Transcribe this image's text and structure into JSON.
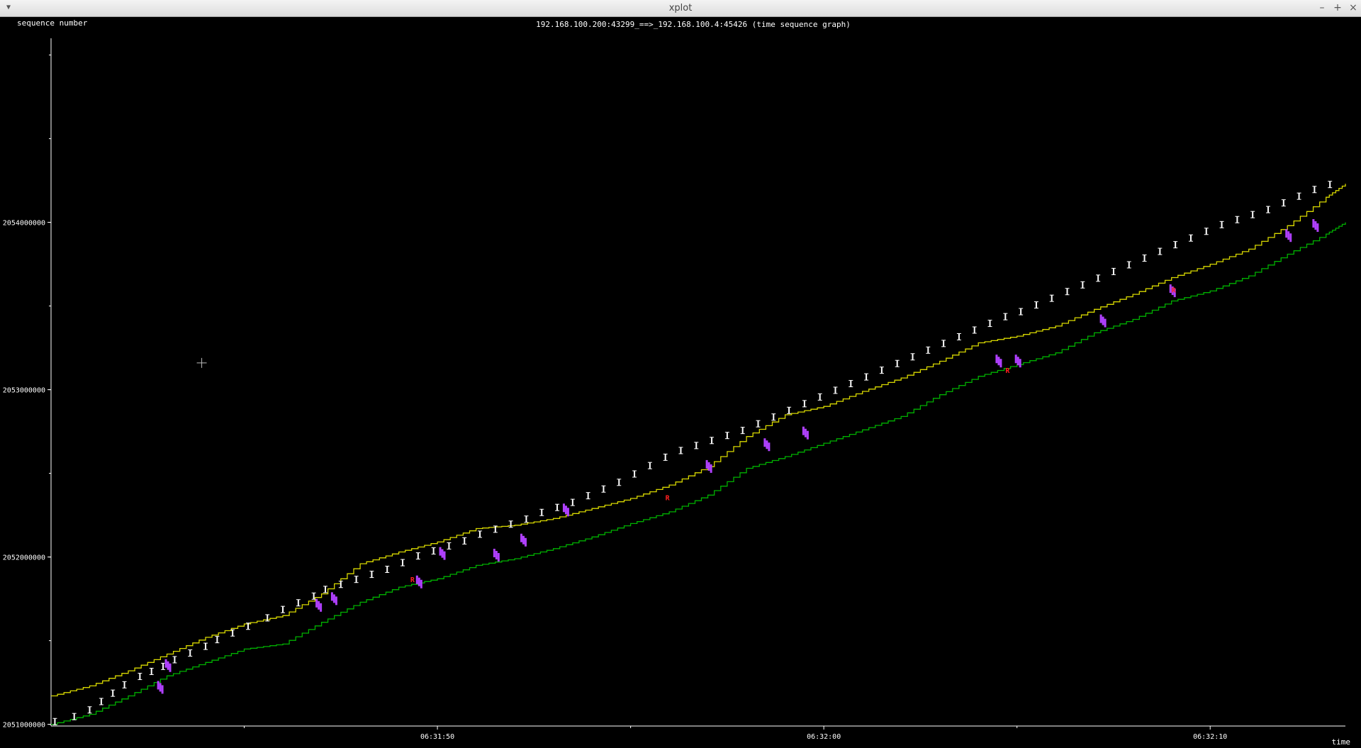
{
  "window": {
    "title": "xplot",
    "menu_icon": "chevron-down-icon",
    "controls": [
      {
        "name": "minimize-icon",
        "glyph": "–"
      },
      {
        "name": "maximize-icon",
        "glyph": "+"
      },
      {
        "name": "close-icon",
        "glyph": "×"
      }
    ]
  },
  "chart_data": {
    "type": "line",
    "title": "192.168.100.200:43299_==>_192.168.100.4:45426 (time sequence graph)",
    "ylabel": "sequence number",
    "xlabel": "time",
    "x_ticks": [
      "06:31:50",
      "06:32:00",
      "06:32:10"
    ],
    "y_ticks": [
      "2051000000",
      "2052000000",
      "2053000000",
      "2054000000"
    ],
    "y_tick_values": [
      2051000000,
      2052000000,
      2053000000,
      2054000000
    ],
    "x_tick_values": [
      50,
      60,
      70
    ],
    "xlim": [
      40.0,
      73.5
    ],
    "ylim": [
      2050990000,
      2055100000
    ],
    "grid": false,
    "colors": {
      "window": "#d8d800",
      "ack": "#00b000",
      "data": "#ffffff",
      "sack": "#b040ff",
      "retransmit": "#ff2020",
      "axis": "#ffffff",
      "text": "#ffffff"
    },
    "series": [
      {
        "color": "window",
        "x": [
          40.0,
          41.0,
          42.0,
          43.0,
          44.0,
          45.0,
          46.0,
          47.0,
          48.0,
          49.0,
          50.0,
          51.0,
          52.0,
          53.0,
          54.0,
          55.0,
          56.0,
          57.0,
          58.0,
          59.0,
          60.0,
          61.0,
          62.0,
          63.0,
          64.0,
          65.0,
          66.0,
          67.0,
          68.0,
          69.0,
          70.0,
          71.0,
          72.0,
          73.0,
          73.5
        ],
        "y": [
          2051170000,
          2051230000,
          2051320000,
          2051420000,
          2051520000,
          2051600000,
          2051650000,
          2051780000,
          2051960000,
          2052030000,
          2052090000,
          2052170000,
          2052190000,
          2052230000,
          2052290000,
          2052350000,
          2052430000,
          2052540000,
          2052720000,
          2052850000,
          2052900000,
          2052990000,
          2053070000,
          2053170000,
          2053280000,
          2053320000,
          2053380000,
          2053480000,
          2053570000,
          2053670000,
          2053750000,
          2053840000,
          2053980000,
          2054150000,
          2054230000
        ]
      },
      {
        "color": "ack",
        "x": [
          40.0,
          41.0,
          42.0,
          43.0,
          44.0,
          45.0,
          46.0,
          47.0,
          48.0,
          49.0,
          50.0,
          51.0,
          52.0,
          53.0,
          54.0,
          55.0,
          56.0,
          57.0,
          58.0,
          59.0,
          60.0,
          61.0,
          62.0,
          63.0,
          64.0,
          65.0,
          66.0,
          67.0,
          68.0,
          69.0,
          70.0,
          71.0,
          72.0,
          73.0,
          73.5
        ],
        "y": [
          2051000000,
          2051060000,
          2051170000,
          2051290000,
          2051370000,
          2051450000,
          2051480000,
          2051610000,
          2051730000,
          2051820000,
          2051870000,
          2051950000,
          2051990000,
          2052050000,
          2052120000,
          2052200000,
          2052270000,
          2052370000,
          2052530000,
          2052600000,
          2052680000,
          2052760000,
          2052840000,
          2052970000,
          2053080000,
          2053150000,
          2053220000,
          2053340000,
          2053420000,
          2053530000,
          2053590000,
          2053680000,
          2053810000,
          2053930000,
          2054000000
        ]
      }
    ],
    "data_segments": {
      "color": "data",
      "x": [
        40.1,
        40.6,
        41.0,
        41.3,
        41.6,
        41.9,
        42.3,
        42.6,
        42.9,
        43.2,
        43.6,
        44.0,
        44.3,
        44.7,
        45.1,
        45.6,
        46.0,
        46.4,
        46.8,
        47.1,
        47.5,
        47.9,
        48.3,
        48.7,
        49.1,
        49.5,
        49.9,
        50.3,
        50.7,
        51.1,
        51.5,
        51.9,
        52.3,
        52.7,
        53.1,
        53.5,
        53.9,
        54.3,
        54.7,
        55.1,
        55.5,
        55.9,
        56.3,
        56.7,
        57.1,
        57.5,
        57.9,
        58.3,
        58.7,
        59.1,
        59.5,
        59.9,
        60.3,
        60.7,
        61.1,
        61.5,
        61.9,
        62.3,
        62.7,
        63.1,
        63.5,
        63.9,
        64.3,
        64.7,
        65.1,
        65.5,
        65.9,
        66.3,
        66.7,
        67.1,
        67.5,
        67.9,
        68.3,
        68.7,
        69.1,
        69.5,
        69.9,
        70.3,
        70.7,
        71.1,
        71.5,
        71.9,
        72.3,
        72.7,
        73.1
      ],
      "y": [
        2051010000,
        2051040000,
        2051080000,
        2051130000,
        2051180000,
        2051230000,
        2051280000,
        2051310000,
        2051340000,
        2051380000,
        2051420000,
        2051460000,
        2051500000,
        2051540000,
        2051580000,
        2051630000,
        2051680000,
        2051720000,
        2051760000,
        2051800000,
        2051830000,
        2051860000,
        2051890000,
        2051920000,
        2051960000,
        2052000000,
        2052030000,
        2052060000,
        2052090000,
        2052130000,
        2052160000,
        2052190000,
        2052220000,
        2052260000,
        2052290000,
        2052320000,
        2052360000,
        2052400000,
        2052440000,
        2052490000,
        2052540000,
        2052590000,
        2052630000,
        2052660000,
        2052690000,
        2052720000,
        2052750000,
        2052790000,
        2052830000,
        2052870000,
        2052910000,
        2052950000,
        2052990000,
        2053030000,
        2053070000,
        2053110000,
        2053150000,
        2053190000,
        2053230000,
        2053270000,
        2053310000,
        2053350000,
        2053390000,
        2053430000,
        2053460000,
        2053500000,
        2053540000,
        2053580000,
        2053620000,
        2053660000,
        2053700000,
        2053740000,
        2053780000,
        2053820000,
        2053860000,
        2053900000,
        2053940000,
        2053980000,
        2054010000,
        2054040000,
        2054070000,
        2054110000,
        2054150000,
        2054190000,
        2054220000
      ]
    },
    "sack_clusters": {
      "color": "sack",
      "x": [
        42.8,
        43.0,
        46.9,
        47.3,
        49.5,
        50.1,
        51.5,
        52.2,
        53.3,
        57.0,
        58.5,
        59.5,
        64.5,
        65.0,
        67.2,
        69.0,
        72.0,
        72.7
      ],
      "y": [
        2051200000,
        2051330000,
        2051690000,
        2051730000,
        2051830000,
        2052000000,
        2051990000,
        2052080000,
        2052260000,
        2052520000,
        2052650000,
        2052720000,
        2053150000,
        2053150000,
        2053390000,
        2053570000,
        2053900000,
        2053960000
      ]
    },
    "retransmissions": {
      "color": "retransmit",
      "label": "R",
      "x": [
        49.3,
        55.9,
        64.7,
        69.0
      ],
      "y": [
        2051850000,
        2052340000,
        2053100000,
        2053580000
      ]
    },
    "crosshair": {
      "x": 43.9,
      "y": 2053160000
    }
  }
}
